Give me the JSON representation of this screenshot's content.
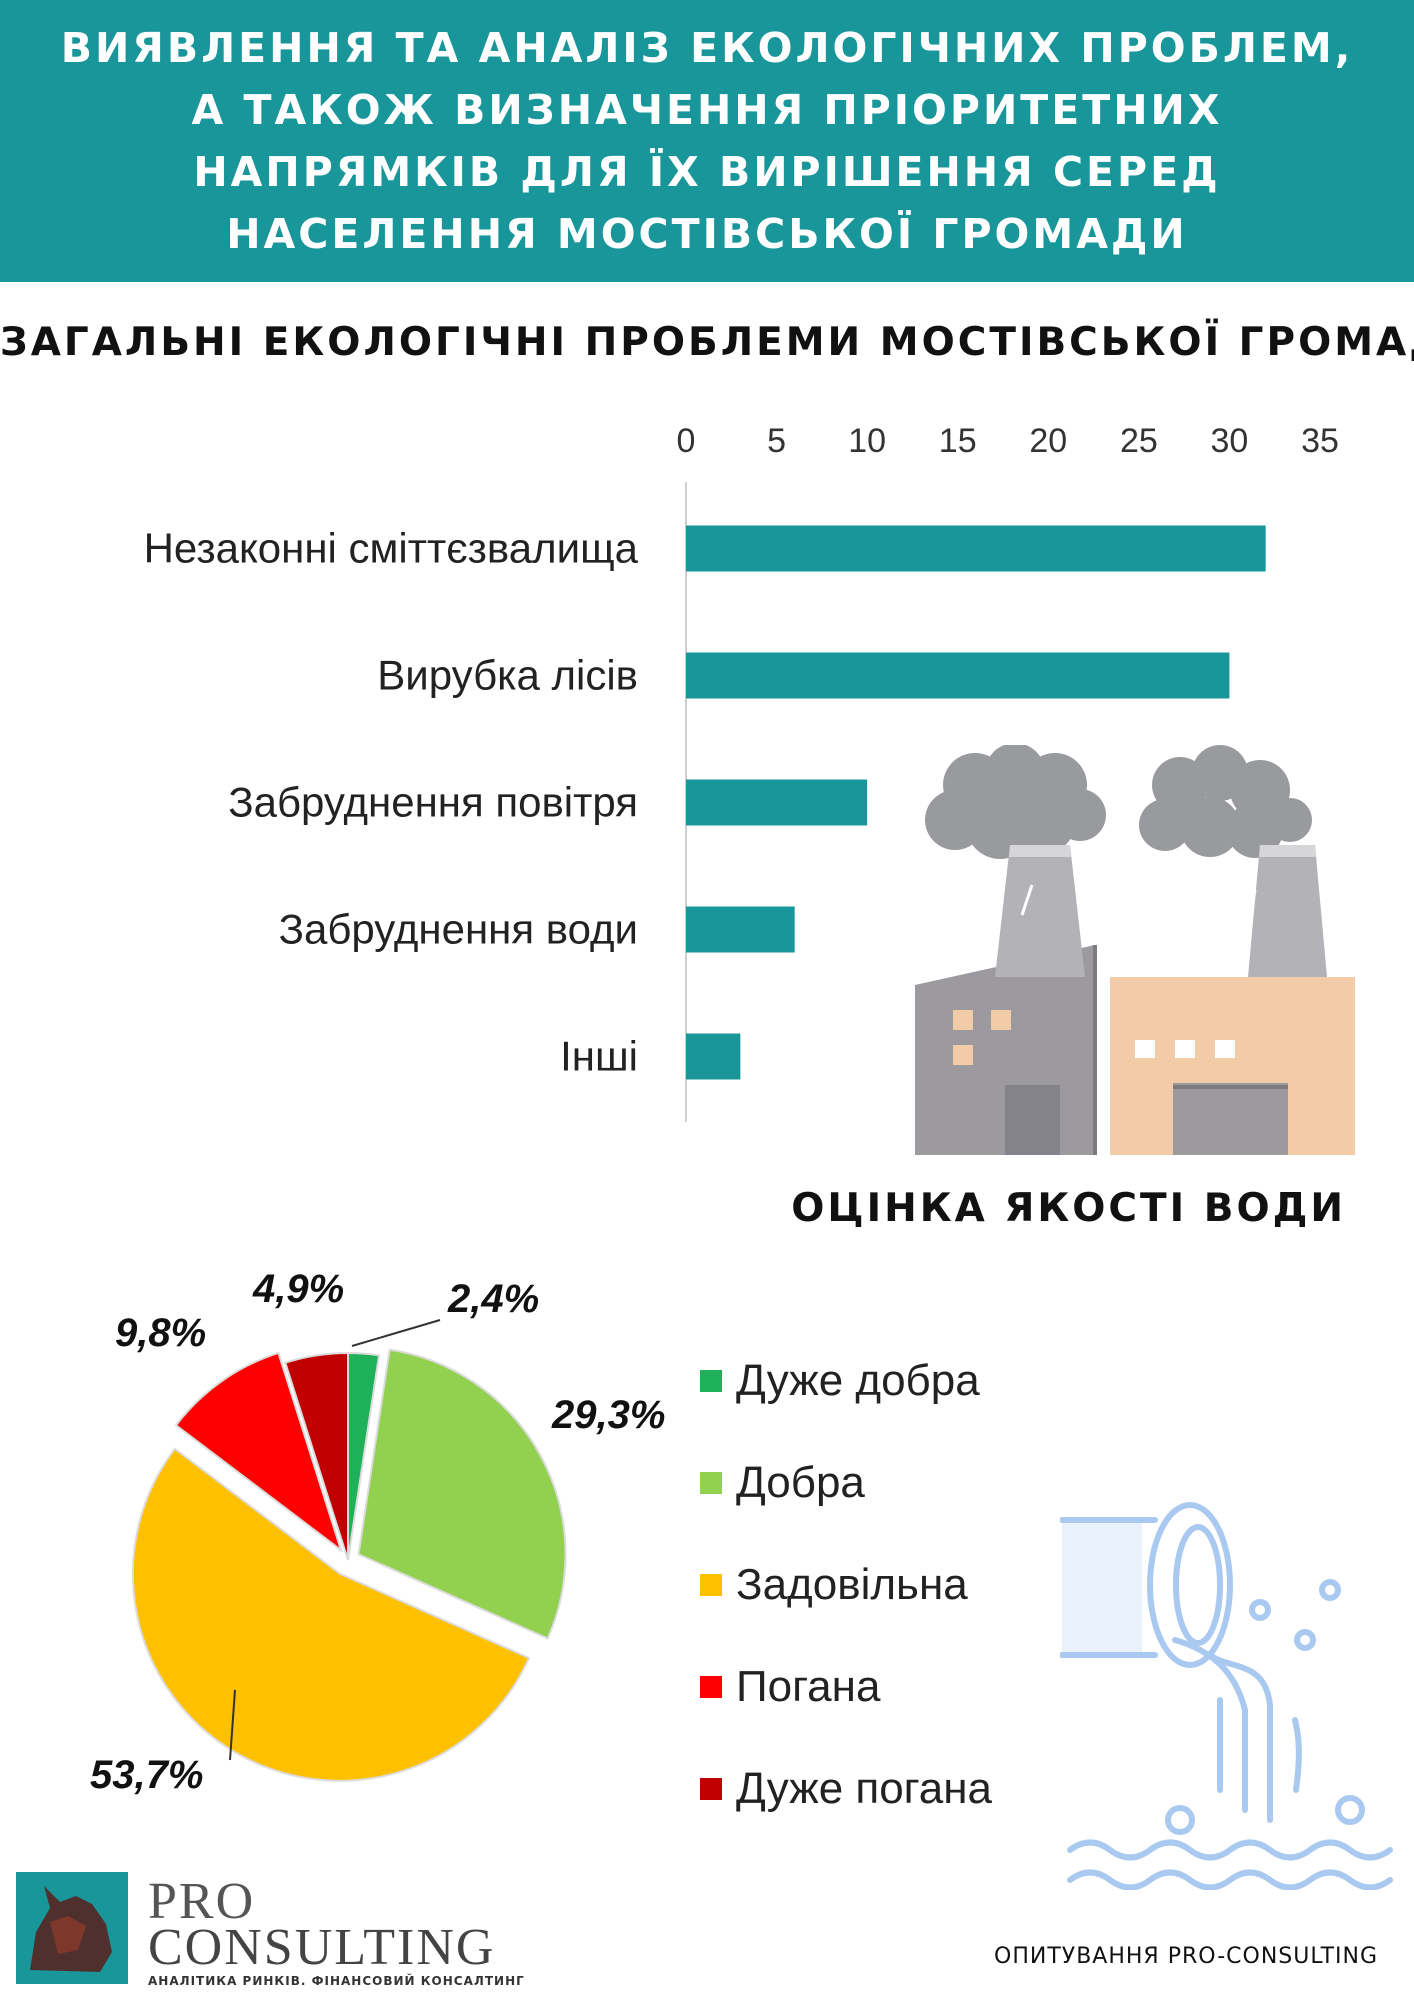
{
  "header": {
    "title": "Виявлення та аналіз екологічних проблем, а також визначення пріоритетних напрямків для їх вирішення серед населення Мостівської громади"
  },
  "chart_data": [
    {
      "type": "bar",
      "orientation": "horizontal",
      "title": "ЗАГАЛЬНІ ЕКОЛОГІЧНІ ПРОБЛЕМИ МОСТІВСЬКОЇ ГРОМАДИ",
      "categories": [
        "Незаконні сміттєзвалища",
        "Вирубка лісів",
        "Забруднення повітря",
        "Забруднення води",
        "Інші"
      ],
      "values": [
        32,
        30,
        10,
        6,
        3
      ],
      "xticks": [
        "0",
        "5",
        "10",
        "15",
        "20",
        "25",
        "30",
        "35"
      ],
      "xlim": [
        0,
        35
      ],
      "axis_position": "top",
      "grid": false,
      "color": "#18969a"
    },
    {
      "type": "pie",
      "title": "ОЦІНКА ЯКОСТІ ВОДИ",
      "categories": [
        "Дуже добра",
        "Добра",
        "Задовільна",
        "Погана",
        "Дуже погана"
      ],
      "values": [
        2.4,
        29.3,
        53.7,
        9.8,
        4.9
      ],
      "labels": [
        "2,4%",
        "29,3%",
        "53,7%",
        "9,8%",
        "4,9%"
      ],
      "colors": [
        "#1fb05a",
        "#92d050",
        "#ffc000",
        "#ff0000",
        "#c00000"
      ],
      "legend": "right"
    }
  ],
  "icons": {
    "factory": "factory-icon",
    "pipe": "water-pipe-icon",
    "logo": "rhino-logo-icon"
  },
  "footer": {
    "logo_pro": "PRO",
    "logo_consulting": "CONSULTING",
    "logo_tagline": "АНАЛІТИКА РИНКІВ. ФІНАНСОВИЙ КОНСАЛТИНГ",
    "survey_note": "ОПИТУВАННЯ PRO-CONSULTING"
  }
}
